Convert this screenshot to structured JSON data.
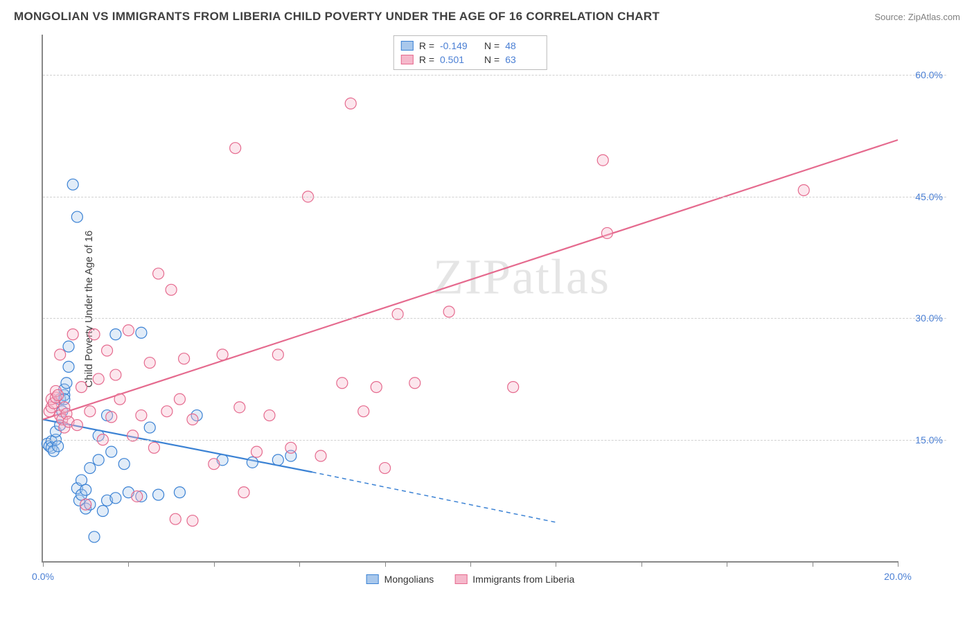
{
  "title": "MONGOLIAN VS IMMIGRANTS FROM LIBERIA CHILD POVERTY UNDER THE AGE OF 16 CORRELATION CHART",
  "source": "Source: ZipAtlas.com",
  "ylabel": "Child Poverty Under the Age of 16",
  "watermark_a": "ZIP",
  "watermark_b": "atlas",
  "chart": {
    "type": "scatter-with-regression",
    "xlim": [
      0,
      20
    ],
    "ylim": [
      0,
      65
    ],
    "xticks": [
      0,
      2,
      4,
      6,
      8,
      10,
      12,
      14,
      16,
      18,
      20
    ],
    "xtick_labels": {
      "0": "0.0%",
      "20": "20.0%"
    },
    "yticks": [
      15,
      30,
      45,
      60
    ],
    "ytick_labels": [
      "15.0%",
      "30.0%",
      "45.0%",
      "60.0%"
    ],
    "grid_color": "#d0d0d0",
    "axis_color": "#888888",
    "background": "#ffffff",
    "marker_radius": 8,
    "marker_stroke_width": 1.2,
    "marker_fill_opacity": 0.35,
    "line_width": 2.2,
    "series": [
      {
        "name": "Mongolians",
        "color_stroke": "#3b82d4",
        "color_fill": "#a9c8ec",
        "R": "-0.149",
        "N": "48",
        "regression": {
          "x1": 0,
          "y1": 17.5,
          "x2": 6.3,
          "y2": 11,
          "extend_x2": 12,
          "extend_y2": 4.8,
          "dashed_after_x": 6.3
        },
        "points": [
          [
            0.1,
            14.5
          ],
          [
            0.15,
            14.2
          ],
          [
            0.2,
            14.8
          ],
          [
            0.2,
            14.0
          ],
          [
            0.25,
            13.6
          ],
          [
            0.3,
            15.0
          ],
          [
            0.3,
            16.0
          ],
          [
            0.35,
            14.2
          ],
          [
            0.4,
            16.8
          ],
          [
            0.4,
            20.0
          ],
          [
            0.45,
            18.5
          ],
          [
            0.5,
            20.5
          ],
          [
            0.5,
            21.2
          ],
          [
            0.5,
            20.0
          ],
          [
            0.55,
            22.0
          ],
          [
            0.6,
            24.0
          ],
          [
            0.6,
            26.5
          ],
          [
            0.7,
            46.5
          ],
          [
            0.8,
            42.5
          ],
          [
            0.8,
            9.0
          ],
          [
            0.85,
            7.5
          ],
          [
            0.9,
            10.0
          ],
          [
            0.9,
            8.2
          ],
          [
            1.0,
            6.5
          ],
          [
            1.0,
            8.8
          ],
          [
            1.1,
            7.0
          ],
          [
            1.1,
            11.5
          ],
          [
            1.2,
            3.0
          ],
          [
            1.3,
            15.5
          ],
          [
            1.3,
            12.5
          ],
          [
            1.4,
            6.2
          ],
          [
            1.5,
            7.5
          ],
          [
            1.5,
            18.0
          ],
          [
            1.6,
            13.5
          ],
          [
            1.7,
            7.8
          ],
          [
            1.7,
            28.0
          ],
          [
            1.9,
            12.0
          ],
          [
            2.0,
            8.5
          ],
          [
            2.3,
            8.0
          ],
          [
            2.3,
            28.2
          ],
          [
            2.5,
            16.5
          ],
          [
            2.7,
            8.2
          ],
          [
            3.2,
            8.5
          ],
          [
            3.6,
            18.0
          ],
          [
            4.2,
            12.5
          ],
          [
            4.9,
            12.2
          ],
          [
            5.5,
            12.5
          ],
          [
            5.8,
            13.0
          ]
        ]
      },
      {
        "name": "Immigrants from Liberia",
        "color_stroke": "#e56a8e",
        "color_fill": "#f5b8cb",
        "R": "0.501",
        "N": "63",
        "regression": {
          "x1": 0,
          "y1": 17.5,
          "x2": 20,
          "y2": 52,
          "dashed_after_x": 999
        },
        "points": [
          [
            0.15,
            18.5
          ],
          [
            0.2,
            19.0
          ],
          [
            0.2,
            20.0
          ],
          [
            0.25,
            19.5
          ],
          [
            0.3,
            20.2
          ],
          [
            0.3,
            21.0
          ],
          [
            0.35,
            20.5
          ],
          [
            0.4,
            18.0
          ],
          [
            0.4,
            25.5
          ],
          [
            0.45,
            17.5
          ],
          [
            0.5,
            16.5
          ],
          [
            0.5,
            19.0
          ],
          [
            0.55,
            18.2
          ],
          [
            0.6,
            17.2
          ],
          [
            0.7,
            28.0
          ],
          [
            0.8,
            16.8
          ],
          [
            0.9,
            21.5
          ],
          [
            1.0,
            7.0
          ],
          [
            1.1,
            18.5
          ],
          [
            1.2,
            28.0
          ],
          [
            1.3,
            22.5
          ],
          [
            1.4,
            15.0
          ],
          [
            1.5,
            26.0
          ],
          [
            1.6,
            17.8
          ],
          [
            1.7,
            23.0
          ],
          [
            1.8,
            20.0
          ],
          [
            2.0,
            28.5
          ],
          [
            2.1,
            15.5
          ],
          [
            2.2,
            8.0
          ],
          [
            2.3,
            18.0
          ],
          [
            2.5,
            24.5
          ],
          [
            2.6,
            14.0
          ],
          [
            2.7,
            35.5
          ],
          [
            2.9,
            18.5
          ],
          [
            3.0,
            33.5
          ],
          [
            3.1,
            5.2
          ],
          [
            3.2,
            20.0
          ],
          [
            3.3,
            25.0
          ],
          [
            3.5,
            5.0
          ],
          [
            3.5,
            17.5
          ],
          [
            4.0,
            12.0
          ],
          [
            4.2,
            25.5
          ],
          [
            4.5,
            51.0
          ],
          [
            4.6,
            19.0
          ],
          [
            4.7,
            8.5
          ],
          [
            5.0,
            13.5
          ],
          [
            5.3,
            18.0
          ],
          [
            5.5,
            25.5
          ],
          [
            5.8,
            14.0
          ],
          [
            6.2,
            45.0
          ],
          [
            6.5,
            13.0
          ],
          [
            7.0,
            22.0
          ],
          [
            7.2,
            56.5
          ],
          [
            7.5,
            18.5
          ],
          [
            7.8,
            21.5
          ],
          [
            8.0,
            11.5
          ],
          [
            8.3,
            30.5
          ],
          [
            8.7,
            22.0
          ],
          [
            9.5,
            30.8
          ],
          [
            13.1,
            49.5
          ],
          [
            13.2,
            40.5
          ],
          [
            17.8,
            45.8
          ],
          [
            11.0,
            21.5
          ]
        ]
      }
    ]
  },
  "legend_bottom": [
    {
      "label": "Mongolians",
      "stroke": "#3b82d4",
      "fill": "#a9c8ec"
    },
    {
      "label": "Immigrants from Liberia",
      "stroke": "#e56a8e",
      "fill": "#f5b8cb"
    }
  ]
}
